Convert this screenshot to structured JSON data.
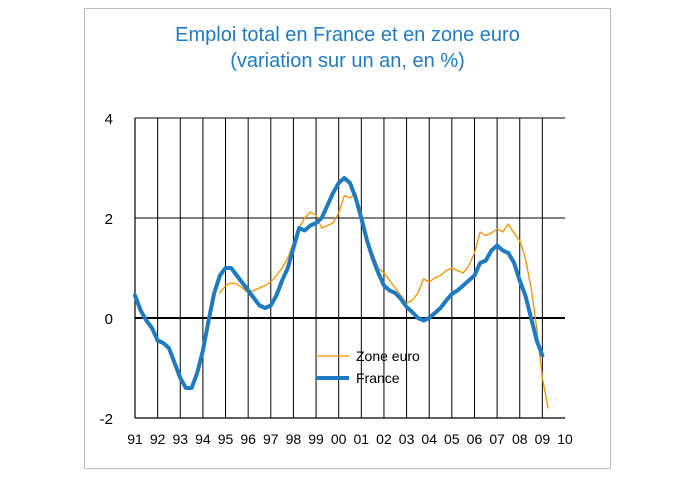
{
  "chart_data": {
    "type": "line",
    "title": "Emploi total en France et en zone euro",
    "subtitle": "(variation sur un an, en %)",
    "xlabel": "",
    "ylabel": "",
    "x_tick_labels": [
      "91",
      "92",
      "93",
      "94",
      "95",
      "96",
      "97",
      "98",
      "99",
      "00",
      "01",
      "02",
      "03",
      "04",
      "05",
      "06",
      "07",
      "08",
      "09",
      "10"
    ],
    "y_ticks": [
      -2,
      0,
      2,
      4
    ],
    "y_tick_labels": [
      "-2",
      "0",
      "2",
      "4"
    ],
    "xlim": [
      1991,
      2010
    ],
    "ylim": [
      -2,
      4
    ],
    "grid": "horizontal at 2 and 4",
    "legend": "center-bottom",
    "series": [
      {
        "name": "Zone euro",
        "color": "#f39200",
        "x": [
          1994.75,
          1995.0,
          1995.25,
          1995.5,
          1995.75,
          1996.0,
          1996.25,
          1996.5,
          1996.75,
          1997.0,
          1997.25,
          1997.5,
          1997.75,
          1998.0,
          1998.25,
          1998.5,
          1998.75,
          1999.0,
          1999.25,
          1999.5,
          1999.75,
          2000.0,
          2000.25,
          2000.5,
          2000.75,
          2001.0,
          2001.25,
          2001.5,
          2001.75,
          2002.0,
          2002.25,
          2002.5,
          2002.75,
          2003.0,
          2003.25,
          2003.5,
          2003.75,
          2004.0,
          2004.25,
          2004.5,
          2004.75,
          2005.0,
          2005.25,
          2005.5,
          2005.75,
          2006.0,
          2006.25,
          2006.5,
          2006.75,
          2007.0,
          2007.25,
          2007.5,
          2007.75,
          2008.0,
          2008.25,
          2008.5,
          2008.75,
          2009.0,
          2009.25
        ],
        "values": [
          0.5,
          0.65,
          0.7,
          0.68,
          0.6,
          0.5,
          0.55,
          0.6,
          0.65,
          0.72,
          0.85,
          1.0,
          1.2,
          1.5,
          1.8,
          2.0,
          2.12,
          2.05,
          1.8,
          1.85,
          1.9,
          2.1,
          2.45,
          2.4,
          2.5,
          2.1,
          1.6,
          1.3,
          1.0,
          0.9,
          0.75,
          0.6,
          0.45,
          0.3,
          0.35,
          0.5,
          0.78,
          0.72,
          0.8,
          0.85,
          0.95,
          1.0,
          0.95,
          0.9,
          1.05,
          1.3,
          1.72,
          1.65,
          1.7,
          1.78,
          1.72,
          1.88,
          1.7,
          1.55,
          1.2,
          0.6,
          -0.2,
          -1.2,
          -1.8
        ]
      },
      {
        "name": "France",
        "color": "#1f7bc1",
        "x": [
          1991.0,
          1991.25,
          1991.5,
          1991.75,
          1992.0,
          1992.25,
          1992.5,
          1992.75,
          1993.0,
          1993.25,
          1993.5,
          1993.75,
          1994.0,
          1994.25,
          1994.5,
          1994.75,
          1995.0,
          1995.25,
          1995.5,
          1995.75,
          1996.0,
          1996.25,
          1996.5,
          1996.75,
          1997.0,
          1997.25,
          1997.5,
          1997.75,
          1998.0,
          1998.25,
          1998.5,
          1998.75,
          1999.0,
          1999.25,
          1999.5,
          1999.75,
          2000.0,
          2000.25,
          2000.5,
          2000.75,
          2001.0,
          2001.25,
          2001.5,
          2001.75,
          2002.0,
          2002.25,
          2002.5,
          2002.75,
          2003.0,
          2003.25,
          2003.5,
          2003.75,
          2004.0,
          2004.25,
          2004.5,
          2004.75,
          2005.0,
          2005.25,
          2005.5,
          2005.75,
          2006.0,
          2006.25,
          2006.5,
          2006.75,
          2007.0,
          2007.25,
          2007.5,
          2007.75,
          2008.0,
          2008.25,
          2008.5,
          2008.75,
          2009.0
        ],
        "values": [
          0.45,
          0.15,
          -0.05,
          -0.2,
          -0.45,
          -0.5,
          -0.6,
          -0.9,
          -1.2,
          -1.4,
          -1.4,
          -1.1,
          -0.65,
          -0.05,
          0.5,
          0.85,
          1.0,
          1.0,
          0.85,
          0.7,
          0.55,
          0.4,
          0.25,
          0.2,
          0.25,
          0.45,
          0.75,
          1.0,
          1.4,
          1.8,
          1.75,
          1.85,
          1.9,
          2.0,
          2.25,
          2.5,
          2.7,
          2.8,
          2.7,
          2.4,
          2.0,
          1.55,
          1.2,
          0.9,
          0.65,
          0.55,
          0.5,
          0.38,
          0.22,
          0.12,
          0.0,
          -0.05,
          0.0,
          0.1,
          0.2,
          0.35,
          0.48,
          0.55,
          0.65,
          0.75,
          0.85,
          1.1,
          1.15,
          1.35,
          1.45,
          1.35,
          1.3,
          1.1,
          0.75,
          0.45,
          0.0,
          -0.45,
          -0.75
        ]
      }
    ]
  }
}
